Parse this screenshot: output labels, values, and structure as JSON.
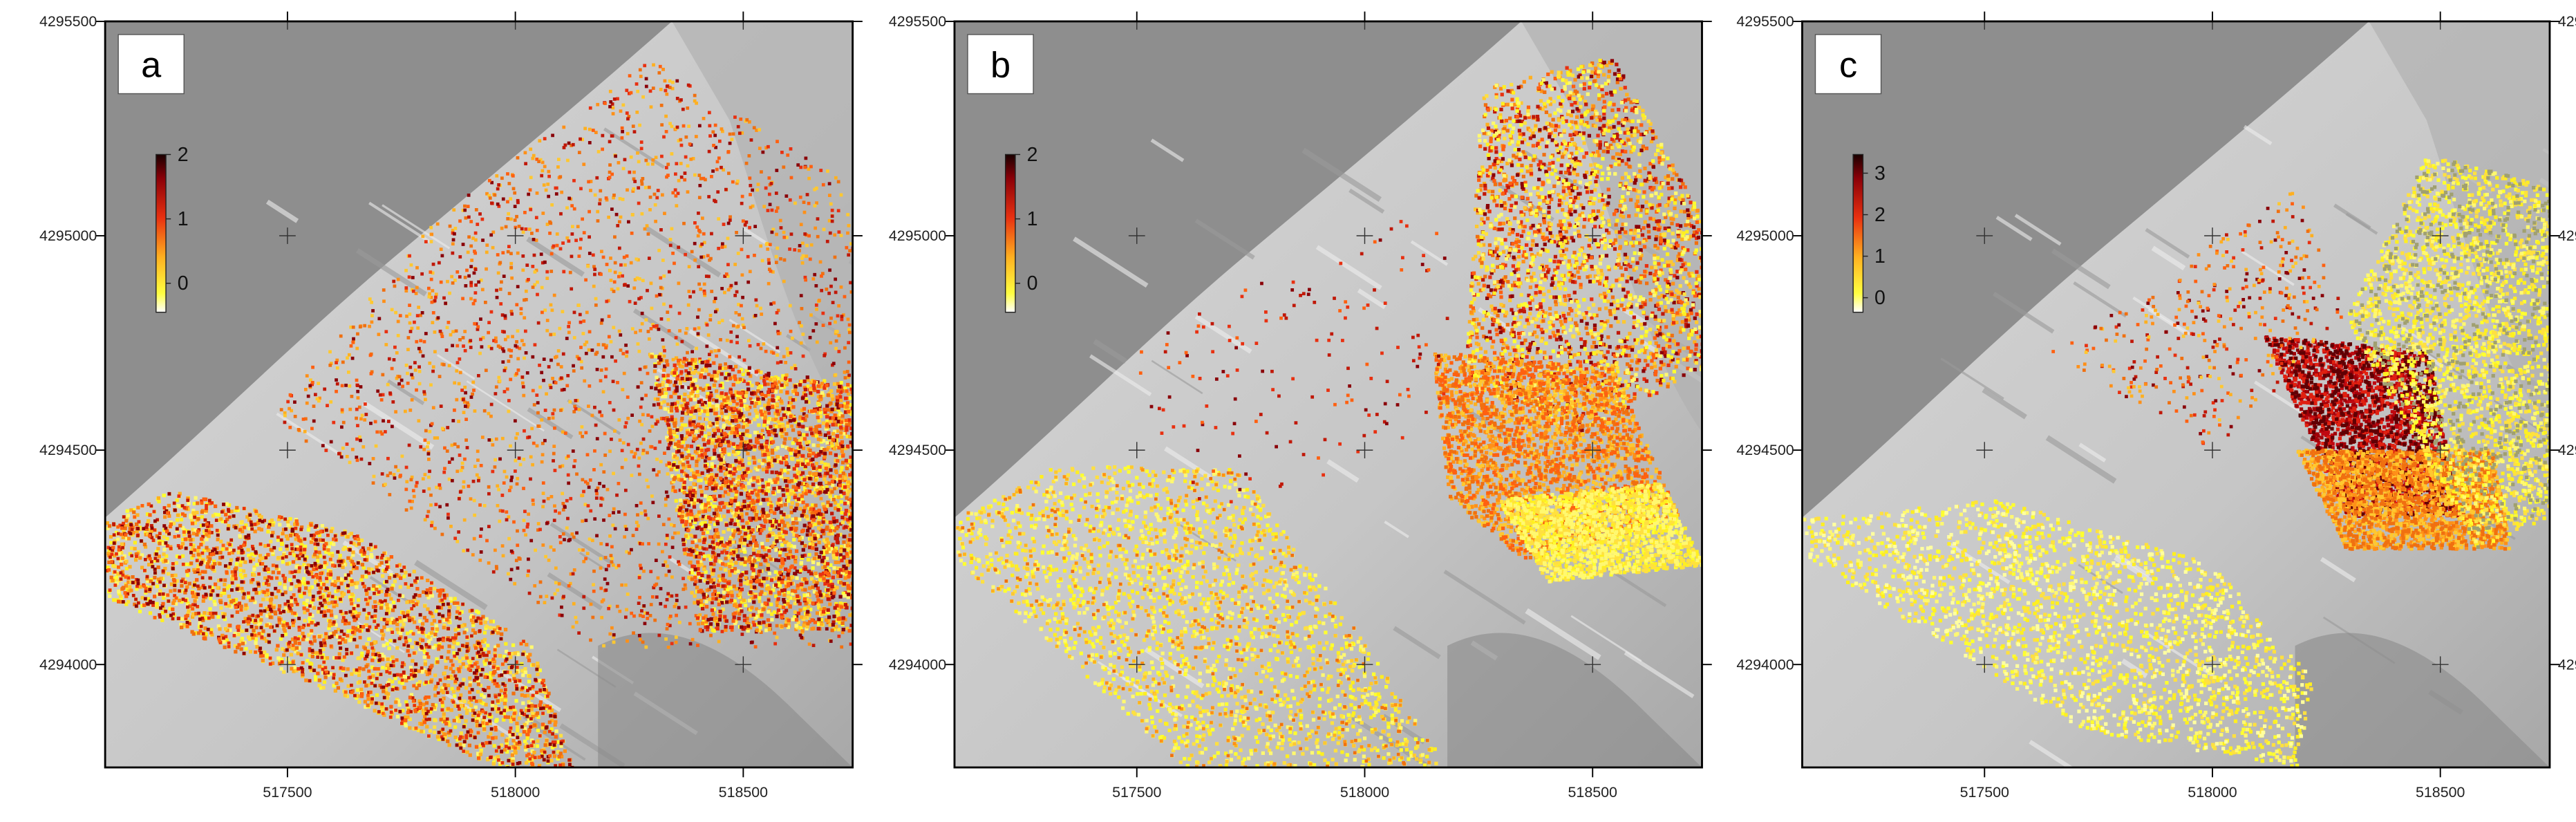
{
  "axes": {
    "xlim": [
      517100,
      518740
    ],
    "ylim": [
      4293760,
      4295500
    ],
    "xticks": [
      517500,
      518000,
      518500
    ],
    "yticks": [
      4294000,
      4294500,
      4295000,
      4295500
    ]
  },
  "panels": [
    {
      "label": "a",
      "colorbar": {
        "lim": [
          -0.45,
          2
        ],
        "ticks": [
          0,
          1,
          2
        ]
      }
    },
    {
      "label": "b",
      "colorbar": {
        "lim": [
          -0.45,
          2
        ],
        "ticks": [
          0,
          1,
          2
        ]
      }
    },
    {
      "label": "c",
      "colorbar": {
        "lim": [
          -0.35,
          3.45
        ],
        "ticks": [
          0,
          1,
          2,
          3
        ]
      }
    }
  ]
}
